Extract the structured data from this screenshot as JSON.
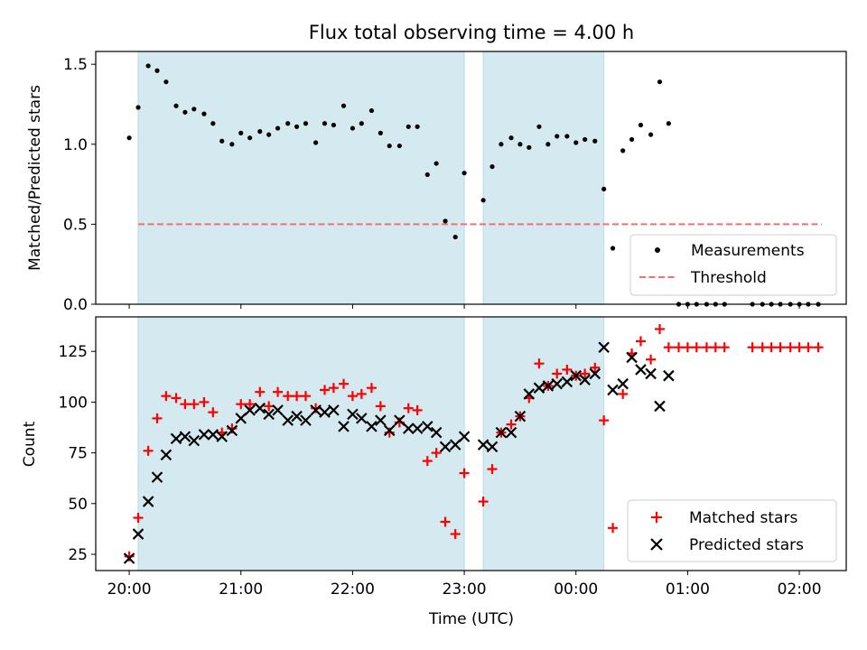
{
  "chart_data": {
    "title": "Flux total observing time = 4.00 h",
    "xlabel": "Time (UTC)",
    "x_unit": "hours since 20:00 UTC",
    "xlim": [
      -0.3,
      6.42
    ],
    "x_ticks": [
      {
        "x": 0,
        "label": "20:00"
      },
      {
        "x": 1,
        "label": "21:00"
      },
      {
        "x": 2,
        "label": "22:00"
      },
      {
        "x": 3,
        "label": "23:00"
      },
      {
        "x": 4,
        "label": "00:00"
      },
      {
        "x": 5,
        "label": "01:00"
      },
      {
        "x": 6,
        "label": "02:00"
      }
    ],
    "shaded_intervals": [
      {
        "start": 0.08,
        "end": 3.0
      },
      {
        "start": 3.17,
        "end": 4.25
      }
    ],
    "shade_color": "#d4eaf0",
    "panels": [
      {
        "type": "scatter",
        "ylabel": "Matched/Predicted stars",
        "ylim": [
          0,
          1.58
        ],
        "y_ticks": [
          0,
          0.5,
          1.0,
          1.5
        ],
        "threshold": {
          "label": "Threshold",
          "value": 0.5,
          "x_start": 0.08,
          "x_end": 6.2,
          "color": "#f07070"
        },
        "legend": {
          "position": "lower right",
          "entries": [
            "Measurements",
            "Threshold"
          ]
        },
        "series": [
          {
            "name": "Measurements",
            "color": "#000000",
            "points": [
              [
                0.0,
                1.04
              ],
              [
                0.08,
                1.23
              ],
              [
                0.17,
                1.49
              ],
              [
                0.25,
                1.46
              ],
              [
                0.33,
                1.39
              ],
              [
                0.42,
                1.24
              ],
              [
                0.5,
                1.2
              ],
              [
                0.58,
                1.22
              ],
              [
                0.67,
                1.19
              ],
              [
                0.75,
                1.13
              ],
              [
                0.83,
                1.02
              ],
              [
                0.92,
                1.0
              ],
              [
                1.0,
                1.07
              ],
              [
                1.08,
                1.04
              ],
              [
                1.17,
                1.08
              ],
              [
                1.25,
                1.06
              ],
              [
                1.33,
                1.1
              ],
              [
                1.42,
                1.13
              ],
              [
                1.5,
                1.11
              ],
              [
                1.58,
                1.13
              ],
              [
                1.67,
                1.01
              ],
              [
                1.75,
                1.13
              ],
              [
                1.83,
                1.12
              ],
              [
                1.92,
                1.24
              ],
              [
                2.0,
                1.1
              ],
              [
                2.08,
                1.13
              ],
              [
                2.17,
                1.21
              ],
              [
                2.25,
                1.07
              ],
              [
                2.33,
                0.99
              ],
              [
                2.42,
                0.99
              ],
              [
                2.5,
                1.11
              ],
              [
                2.58,
                1.11
              ],
              [
                2.67,
                0.81
              ],
              [
                2.75,
                0.88
              ],
              [
                2.83,
                0.52
              ],
              [
                2.92,
                0.42
              ],
              [
                3.0,
                0.82
              ],
              [
                3.17,
                0.65
              ],
              [
                3.25,
                0.86
              ],
              [
                3.33,
                1.0
              ],
              [
                3.42,
                1.04
              ],
              [
                3.5,
                1.0
              ],
              [
                3.58,
                0.98
              ],
              [
                3.67,
                1.11
              ],
              [
                3.75,
                1.0
              ],
              [
                3.83,
                1.05
              ],
              [
                3.92,
                1.05
              ],
              [
                4.0,
                1.01
              ],
              [
                4.08,
                1.03
              ],
              [
                4.17,
                1.02
              ],
              [
                4.25,
                0.72
              ],
              [
                4.33,
                0.35
              ],
              [
                4.42,
                0.96
              ],
              [
                4.5,
                1.03
              ],
              [
                4.58,
                1.12
              ],
              [
                4.67,
                1.06
              ],
              [
                4.75,
                1.39
              ],
              [
                4.83,
                1.13
              ],
              [
                4.92,
                0.0
              ],
              [
                5.0,
                0.0
              ],
              [
                5.08,
                0.0
              ],
              [
                5.17,
                0.0
              ],
              [
                5.25,
                0.0
              ],
              [
                5.33,
                0.0
              ],
              [
                5.58,
                0.0
              ],
              [
                5.67,
                0.0
              ],
              [
                5.75,
                0.0
              ],
              [
                5.83,
                0.0
              ],
              [
                5.92,
                0.0
              ],
              [
                6.0,
                0.0
              ],
              [
                6.08,
                0.0
              ],
              [
                6.17,
                0.0
              ]
            ]
          }
        ]
      },
      {
        "type": "scatter",
        "ylabel": "Count",
        "ylim": [
          17,
          142
        ],
        "y_ticks": [
          25,
          50,
          75,
          100,
          125
        ],
        "legend": {
          "position": "lower right",
          "entries": [
            "Matched stars",
            "Predicted stars"
          ]
        },
        "series": [
          {
            "name": "Matched stars",
            "marker": "+",
            "color": "#ff0000",
            "points": [
              [
                0.0,
                24
              ],
              [
                0.08,
                43
              ],
              [
                0.17,
                76
              ],
              [
                0.25,
                92
              ],
              [
                0.33,
                103
              ],
              [
                0.42,
                102
              ],
              [
                0.5,
                99
              ],
              [
                0.58,
                99
              ],
              [
                0.67,
                100
              ],
              [
                0.75,
                95
              ],
              [
                0.83,
                85
              ],
              [
                0.92,
                87
              ],
              [
                1.0,
                99
              ],
              [
                1.08,
                99
              ],
              [
                1.17,
                105
              ],
              [
                1.25,
                98
              ],
              [
                1.33,
                105
              ],
              [
                1.42,
                103
              ],
              [
                1.5,
                103
              ],
              [
                1.58,
                103
              ],
              [
                1.67,
                97
              ],
              [
                1.75,
                106
              ],
              [
                1.83,
                107
              ],
              [
                1.92,
                109
              ],
              [
                2.0,
                103
              ],
              [
                2.08,
                104
              ],
              [
                2.17,
                107
              ],
              [
                2.25,
                98
              ],
              [
                2.33,
                85
              ],
              [
                2.42,
                90
              ],
              [
                2.5,
                97
              ],
              [
                2.58,
                96
              ],
              [
                2.67,
                71
              ],
              [
                2.75,
                75
              ],
              [
                2.83,
                41
              ],
              [
                2.92,
                35
              ],
              [
                3.0,
                65
              ],
              [
                3.17,
                51
              ],
              [
                3.25,
                67
              ],
              [
                3.33,
                85
              ],
              [
                3.42,
                89
              ],
              [
                3.5,
                93
              ],
              [
                3.58,
                102
              ],
              [
                3.67,
                119
              ],
              [
                3.75,
                108
              ],
              [
                3.83,
                114
              ],
              [
                3.92,
                116
              ],
              [
                4.0,
                113
              ],
              [
                4.08,
                114
              ],
              [
                4.17,
                117
              ],
              [
                4.25,
                91
              ],
              [
                4.33,
                38
              ],
              [
                4.42,
                104
              ],
              [
                4.5,
                124
              ],
              [
                4.58,
                130
              ],
              [
                4.67,
                121
              ],
              [
                4.75,
                136
              ],
              [
                4.83,
                127
              ],
              [
                4.92,
                127
              ],
              [
                5.0,
                127
              ],
              [
                5.08,
                127
              ],
              [
                5.17,
                127
              ],
              [
                5.25,
                127
              ],
              [
                5.33,
                127
              ],
              [
                5.58,
                127
              ],
              [
                5.67,
                127
              ],
              [
                5.75,
                127
              ],
              [
                5.83,
                127
              ],
              [
                5.92,
                127
              ],
              [
                6.0,
                127
              ],
              [
                6.08,
                127
              ],
              [
                6.17,
                127
              ]
            ]
          },
          {
            "name": "Predicted stars",
            "marker": "x",
            "color": "#000000",
            "points": [
              [
                0.0,
                23
              ],
              [
                0.08,
                35
              ],
              [
                0.17,
                51
              ],
              [
                0.25,
                63
              ],
              [
                0.33,
                74
              ],
              [
                0.42,
                82
              ],
              [
                0.5,
                83
              ],
              [
                0.58,
                81
              ],
              [
                0.67,
                84
              ],
              [
                0.75,
                84
              ],
              [
                0.83,
                83
              ],
              [
                0.92,
                86
              ],
              [
                1.0,
                92
              ],
              [
                1.08,
                96
              ],
              [
                1.17,
                97
              ],
              [
                1.25,
                94
              ],
              [
                1.33,
                96
              ],
              [
                1.42,
                91
              ],
              [
                1.5,
                93
              ],
              [
                1.58,
                91
              ],
              [
                1.67,
                96
              ],
              [
                1.75,
                95
              ],
              [
                1.83,
                96
              ],
              [
                1.92,
                88
              ],
              [
                2.0,
                94
              ],
              [
                2.08,
                92
              ],
              [
                2.17,
                88
              ],
              [
                2.25,
                91
              ],
              [
                2.33,
                86
              ],
              [
                2.42,
                91
              ],
              [
                2.5,
                87
              ],
              [
                2.58,
                87
              ],
              [
                2.67,
                88
              ],
              [
                2.75,
                85
              ],
              [
                2.83,
                78
              ],
              [
                2.92,
                79
              ],
              [
                3.0,
                83
              ],
              [
                3.17,
                79
              ],
              [
                3.25,
                78
              ],
              [
                3.33,
                85
              ],
              [
                3.42,
                85
              ],
              [
                3.5,
                93
              ],
              [
                3.58,
                104
              ],
              [
                3.67,
                107
              ],
              [
                3.75,
                108
              ],
              [
                3.83,
                109
              ],
              [
                3.92,
                110
              ],
              [
                4.0,
                113
              ],
              [
                4.08,
                111
              ],
              [
                4.17,
                114
              ],
              [
                4.25,
                127
              ],
              [
                4.33,
                106
              ],
              [
                4.42,
                109
              ],
              [
                4.5,
                122
              ],
              [
                4.58,
                116
              ],
              [
                4.67,
                114
              ],
              [
                4.75,
                98
              ],
              [
                4.83,
                113
              ]
            ]
          }
        ]
      }
    ]
  }
}
